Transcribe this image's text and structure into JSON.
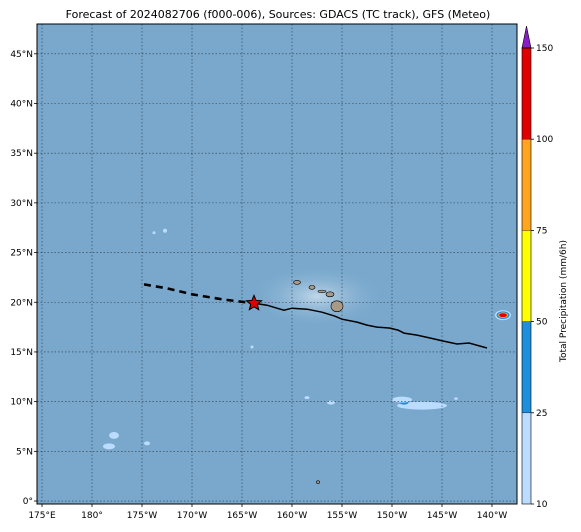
{
  "title": "Forecast of 2024082706 (f000-006), Sources: GDACS (TC track), GFS (Meteo)",
  "map": {
    "lon_range": [
      174.5,
      -137.5
    ],
    "lat_range": [
      -0.3,
      48
    ],
    "ocean_color": "#79a8cc",
    "grid": true,
    "lon_ticks": [
      {
        "value": 175,
        "label": "175°E"
      },
      {
        "value": 180,
        "label": "180°"
      },
      {
        "value": 185,
        "label": "175°W"
      },
      {
        "value": 190,
        "label": "170°W"
      },
      {
        "value": 195,
        "label": "165°W"
      },
      {
        "value": 200,
        "label": "160°W"
      },
      {
        "value": 205,
        "label": "155°W"
      },
      {
        "value": 210,
        "label": "150°W"
      },
      {
        "value": 215,
        "label": "145°W"
      },
      {
        "value": 220,
        "label": "140°W"
      }
    ],
    "lat_ticks": [
      {
        "value": 0,
        "label": "0°"
      },
      {
        "value": 5,
        "label": "5°N"
      },
      {
        "value": 10,
        "label": "10°N"
      },
      {
        "value": 15,
        "label": "15°N"
      },
      {
        "value": 20,
        "label": "20°N"
      },
      {
        "value": 25,
        "label": "25°N"
      },
      {
        "value": 30,
        "label": "30°N"
      },
      {
        "value": 35,
        "label": "35°N"
      },
      {
        "value": 40,
        "label": "40°N"
      },
      {
        "value": 45,
        "label": "45°N"
      }
    ]
  },
  "track": {
    "forecast_dashed": [
      [
        185.2,
        21.8
      ],
      [
        187.5,
        21.4
      ],
      [
        190,
        20.8
      ],
      [
        193,
        20.3
      ],
      [
        196.2,
        19.9
      ]
    ],
    "observed_solid": [
      [
        196.2,
        19.9
      ],
      [
        197.5,
        19.7
      ],
      [
        198.5,
        19.4
      ],
      [
        199.2,
        19.2
      ],
      [
        200,
        19.4
      ],
      [
        201.5,
        19.3
      ],
      [
        203,
        19
      ],
      [
        204.3,
        18.6
      ],
      [
        205,
        18.3
      ],
      [
        206.5,
        18
      ],
      [
        207.5,
        17.7
      ],
      [
        208.5,
        17.5
      ],
      [
        209.8,
        17.4
      ],
      [
        210.6,
        17.2
      ],
      [
        211.2,
        16.9
      ],
      [
        212.5,
        16.7
      ],
      [
        213.8,
        16.4
      ],
      [
        215.1,
        16.1
      ],
      [
        216.5,
        15.8
      ],
      [
        217.7,
        15.9
      ],
      [
        219.5,
        15.4
      ]
    ],
    "current_position": [
      196.2,
      19.9
    ],
    "marker_color": "#e00000"
  },
  "islands": [
    {
      "name": "kauai",
      "center": [
        200.5,
        22.0
      ],
      "rx": 0.35,
      "ry": 0.2
    },
    {
      "name": "oahu",
      "center": [
        202.0,
        21.5
      ],
      "rx": 0.3,
      "ry": 0.2
    },
    {
      "name": "molokai",
      "center": [
        203.0,
        21.1
      ],
      "rx": 0.4,
      "ry": 0.12
    },
    {
      "name": "maui",
      "center": [
        203.8,
        20.8
      ],
      "rx": 0.4,
      "ry": 0.25
    },
    {
      "name": "hawaii",
      "center": [
        204.5,
        19.6
      ],
      "rx": 0.6,
      "ry": 0.55
    },
    {
      "name": "kiritimati",
      "center": [
        202.6,
        1.9
      ],
      "rx": 0.15,
      "ry": 0.15
    }
  ],
  "precip_patches": [
    {
      "center": [
        182.2,
        6.6
      ],
      "rx": 0.5,
      "ry": 0.35,
      "level": 1
    },
    {
      "center": [
        181.7,
        5.5
      ],
      "rx": 0.6,
      "ry": 0.3,
      "level": 1
    },
    {
      "center": [
        187.3,
        27.2
      ],
      "rx": 0.2,
      "ry": 0.2,
      "level": 1
    },
    {
      "center": [
        186.2,
        27.0
      ],
      "rx": 0.15,
      "ry": 0.15,
      "level": 1
    },
    {
      "center": [
        185.5,
        5.8
      ],
      "rx": 0.3,
      "ry": 0.2,
      "level": 1
    },
    {
      "center": [
        213.0,
        9.6
      ],
      "rx": 2.5,
      "ry": 0.4,
      "level": 1
    },
    {
      "center": [
        211.2,
        9.9
      ],
      "rx": 0.45,
      "ry": 0.2,
      "level": 2
    },
    {
      "center": [
        203.9,
        9.9
      ],
      "rx": 0.4,
      "ry": 0.2,
      "level": 1
    },
    {
      "center": [
        201.5,
        10.4
      ],
      "rx": 0.25,
      "ry": 0.15,
      "level": 1
    },
    {
      "center": [
        196.0,
        15.5
      ],
      "rx": 0.15,
      "ry": 0.15,
      "level": 1
    },
    {
      "center": [
        216.4,
        10.3
      ],
      "rx": 0.2,
      "ry": 0.12,
      "level": 1
    },
    {
      "center": [
        211.0,
        10.2
      ],
      "rx": 1.0,
      "ry": 0.3,
      "level": 1
    },
    {
      "center": [
        221.1,
        18.7
      ],
      "rx": 0.8,
      "ry": 0.5,
      "level": 1
    },
    {
      "center": [
        221.1,
        18.7
      ],
      "rx": 0.65,
      "ry": 0.38,
      "level": 2
    },
    {
      "center": [
        221.1,
        18.7
      ],
      "rx": 0.5,
      "ry": 0.28,
      "level": 4
    },
    {
      "center": [
        221.1,
        18.7
      ],
      "rx": 0.38,
      "ry": 0.2,
      "level": 5
    }
  ],
  "colorbar": {
    "title": "Total Precipitation (mm/6h)",
    "levels": [
      10,
      25,
      50,
      75,
      100,
      150
    ],
    "tick_labels": [
      "10",
      "25",
      "50",
      "75",
      "100",
      "150"
    ],
    "colors": [
      "#bcdcff",
      "#1e8fdc",
      "#ffff00",
      "#ffa520",
      "#e00000"
    ],
    "extend_color": "#8a1cc8"
  }
}
